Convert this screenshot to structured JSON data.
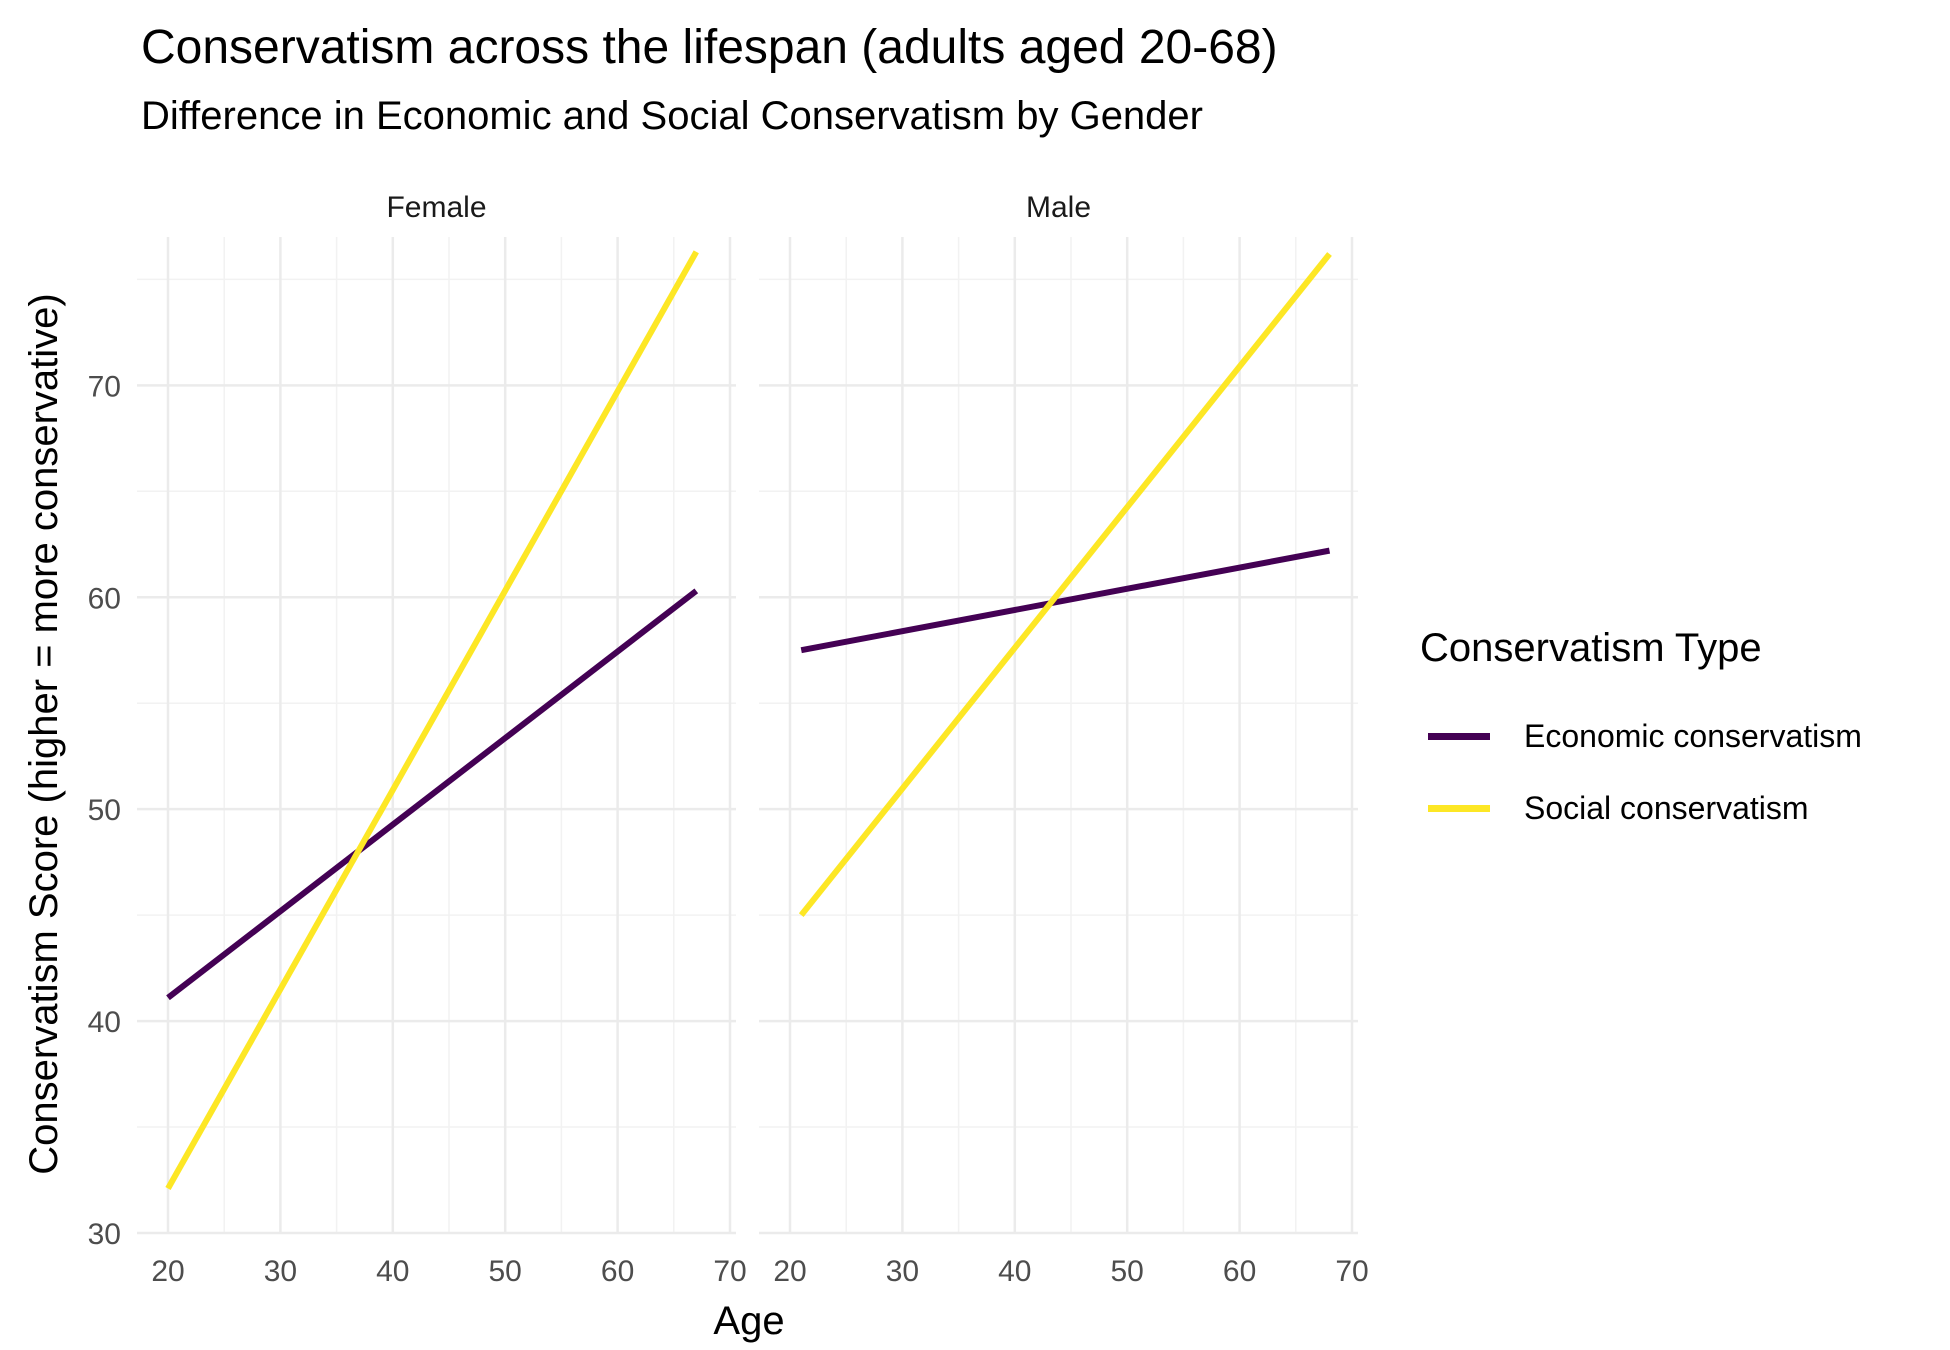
{
  "chart_data": {
    "type": "line",
    "title": "Conservatism across the lifespan (adults aged 20-68)",
    "subtitle": "Difference in Economic and Social Conservatism by Gender",
    "xlabel": "Age",
    "ylabel": "Conservatism Score (higher = more conservative)",
    "xlim": [
      20,
      70
    ],
    "ylim": [
      30,
      77
    ],
    "x_ticks": [
      20,
      30,
      40,
      50,
      60,
      70
    ],
    "y_ticks": [
      30,
      40,
      50,
      60,
      70
    ],
    "grid": true,
    "legend_title": "Conservatism Type",
    "legend_position": "right",
    "panels": [
      {
        "name": "Female",
        "series": [
          {
            "name": "Economic conservatism",
            "color": "#440154",
            "x": [
              20,
              67
            ],
            "values": [
              41.1,
              60.3
            ]
          },
          {
            "name": "Social conservatism",
            "color": "#FDE725",
            "x": [
              20,
              67
            ],
            "values": [
              32.1,
              76.3
            ]
          }
        ]
      },
      {
        "name": "Male",
        "series": [
          {
            "name": "Economic conservatism",
            "color": "#440154",
            "x": [
              21,
              68
            ],
            "values": [
              57.5,
              62.2
            ]
          },
          {
            "name": "Social conservatism",
            "color": "#FDE725",
            "x": [
              21,
              68
            ],
            "values": [
              45.0,
              76.2
            ]
          }
        ]
      }
    ]
  }
}
